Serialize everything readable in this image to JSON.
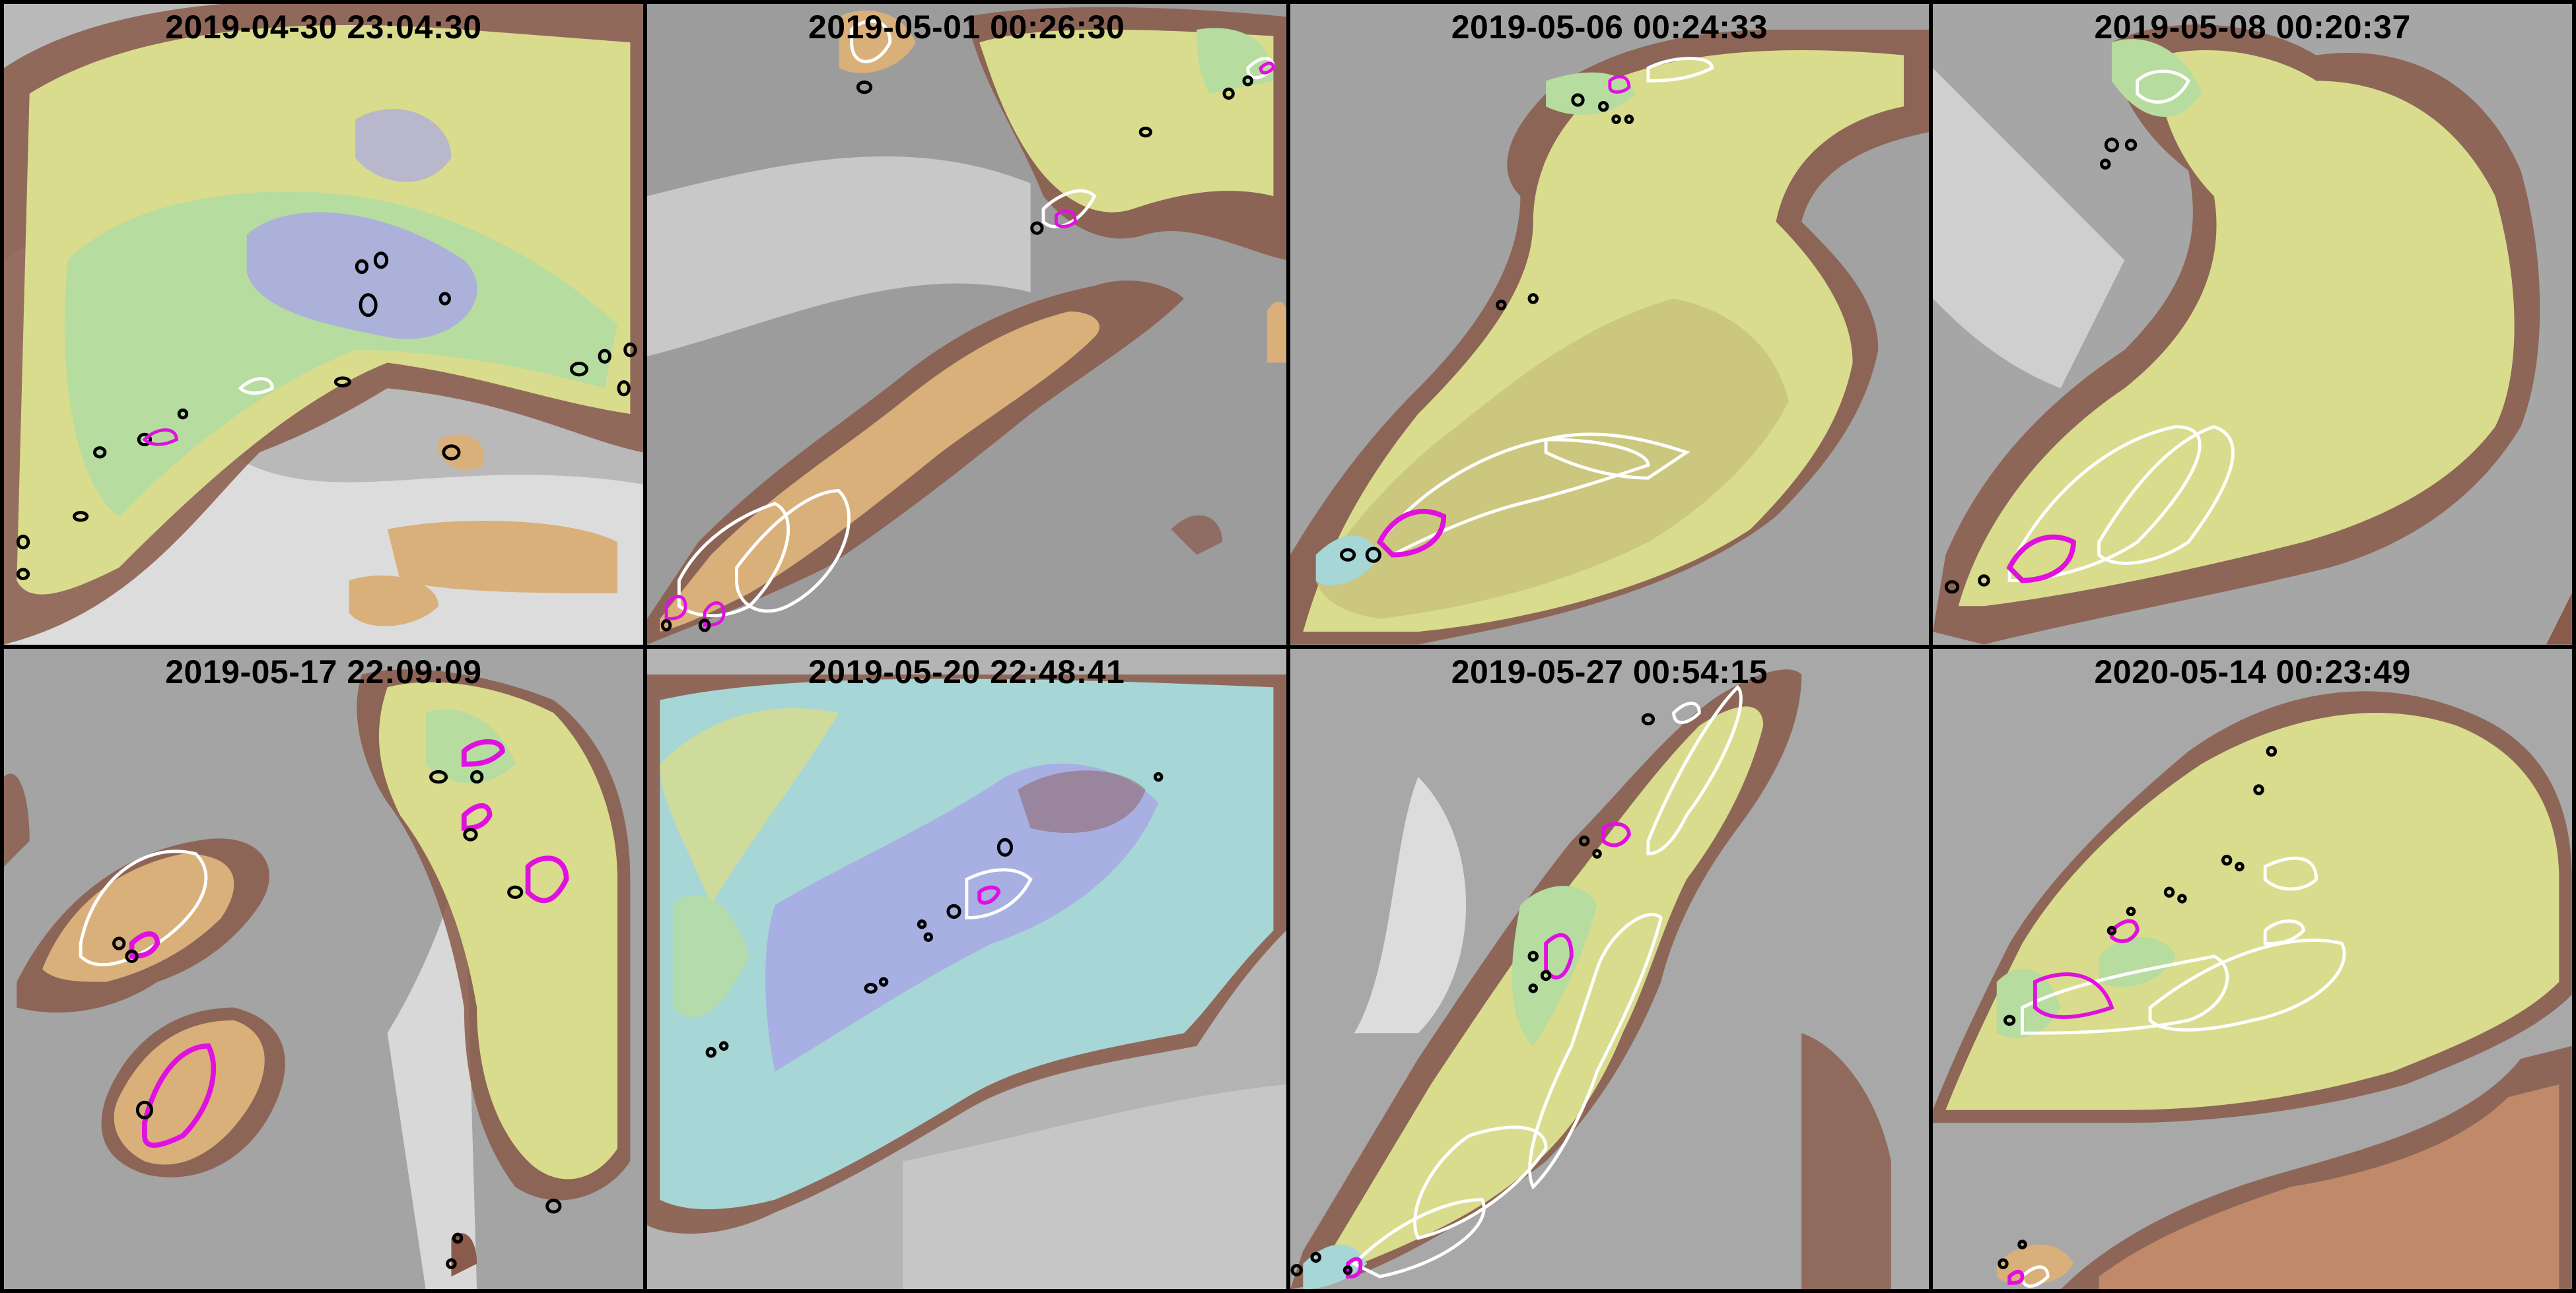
{
  "panels": [
    {
      "timestamp": "2019-04-30 23:04:30"
    },
    {
      "timestamp": "2019-05-01 00:26:30"
    },
    {
      "timestamp": "2019-05-06 00:24:33"
    },
    {
      "timestamp": "2019-05-08 00:20:37"
    },
    {
      "timestamp": "2019-05-17 22:09:09"
    },
    {
      "timestamp": "2019-05-20 22:48:41"
    },
    {
      "timestamp": "2019-05-27 00:54:15"
    },
    {
      "timestamp": "2020-05-14 00:23:49"
    }
  ],
  "colors": {
    "background_gray": "#9a9a9a",
    "cloud_white": "#e6e6e6",
    "anvil_brown": "#8a5a4a",
    "anvil_tan": "#d8b27a",
    "anvil_yellow": "#d9dc8c",
    "anvil_green": "#b6dca0",
    "anvil_cyan": "#a6d6d6",
    "anvil_blue": "#a9a6e6",
    "contour_black": "#000000",
    "contour_magenta": "#e010e0",
    "contour_white": "#ffffff"
  }
}
